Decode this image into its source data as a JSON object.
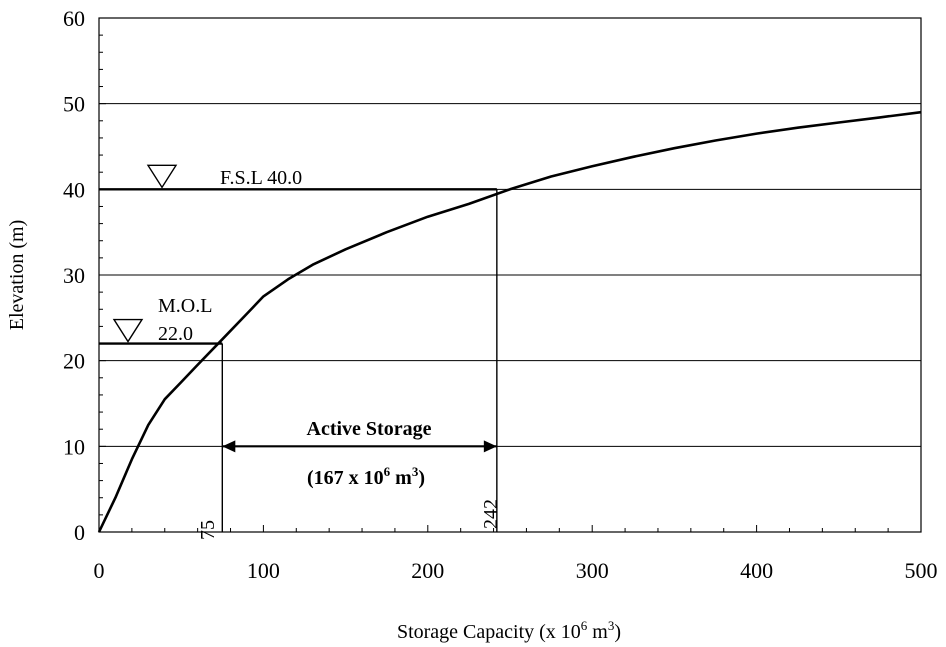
{
  "chart_data": {
    "type": "line",
    "xlabel": "Storage Capacity (x 10",
    "xlabel_sup1": "6",
    "xlabel_mid": " m",
    "xlabel_sup2": "3",
    "xlabel_end": ")",
    "ylabel": "Elevation (m)",
    "xlim": [
      0,
      500
    ],
    "ylim": [
      0,
      60
    ],
    "x_ticks": [
      0,
      100,
      200,
      300,
      400,
      500
    ],
    "y_ticks": [
      0,
      10,
      20,
      30,
      40,
      50,
      60
    ],
    "grid": "horizontal",
    "series": [
      {
        "points": [
          [
            0,
            0
          ],
          [
            10,
            4
          ],
          [
            20,
            8.5
          ],
          [
            30,
            12.5
          ],
          [
            40,
            15.5
          ],
          [
            50,
            17.5
          ],
          [
            60,
            19.5
          ],
          [
            75,
            22.5
          ],
          [
            90,
            25.5
          ],
          [
            100,
            27.5
          ],
          [
            115,
            29.5
          ],
          [
            130,
            31.2
          ],
          [
            150,
            33
          ],
          [
            175,
            35
          ],
          [
            200,
            36.8
          ],
          [
            225,
            38.3
          ],
          [
            250,
            40
          ],
          [
            275,
            41.5
          ],
          [
            300,
            42.7
          ],
          [
            325,
            43.8
          ],
          [
            350,
            44.8
          ],
          [
            375,
            45.7
          ],
          [
            400,
            46.5
          ],
          [
            425,
            47.2
          ],
          [
            450,
            47.8
          ],
          [
            475,
            48.4
          ],
          [
            500,
            49
          ]
        ]
      }
    ],
    "fsl": {
      "label": "F.S.L 40.0",
      "elevation": 40,
      "storage": 242
    },
    "mol": {
      "label_line1": "M.O.L",
      "label_line2": "22.0",
      "elevation": 22,
      "storage": 75
    },
    "active_storage": {
      "title": "Active Storage",
      "value_prefix": "(167 x 10",
      "value_sup1": "6",
      "value_mid": " m",
      "value_sup2": "3",
      "value_end": ")",
      "from": 75,
      "to": 242,
      "from_label": "75",
      "to_label": "242"
    }
  }
}
